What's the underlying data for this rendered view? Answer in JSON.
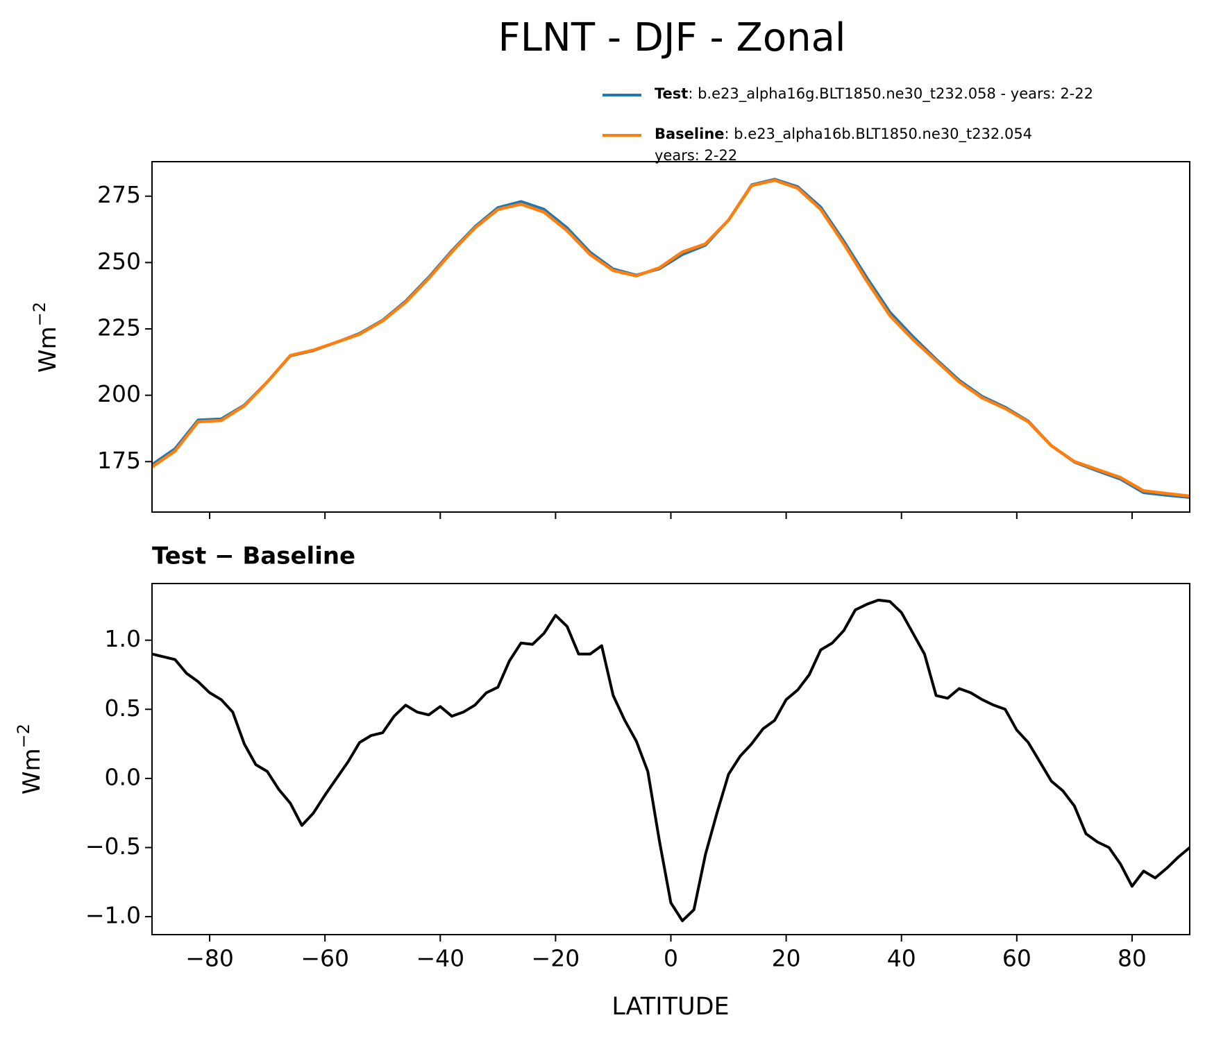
{
  "chart_data": [
    {
      "type": "line",
      "title": "FLNT - DJF - Zonal",
      "ylabel": "Wm",
      "ylabel_exp": "−2",
      "x": [
        -90,
        -86,
        -82,
        -78,
        -74,
        -70,
        -66,
        -62,
        -58,
        -54,
        -50,
        -46,
        -42,
        -38,
        -34,
        -30,
        -26,
        -22,
        -18,
        -14,
        -10,
        -6,
        -2,
        2,
        6,
        10,
        14,
        18,
        22,
        26,
        30,
        34,
        38,
        42,
        46,
        50,
        54,
        58,
        62,
        66,
        70,
        74,
        78,
        82,
        86,
        90
      ],
      "series": [
        {
          "name": "Test",
          "label_lines": [
            ": b.e23_alpha16g.BLT1850.ne30_t232.058 - years: 2-22"
          ],
          "color": "#1f77b4",
          "values": [
            173.9,
            179.9,
            190.7,
            191.1,
            196.3,
            205.1,
            214.8,
            216.8,
            220.0,
            223.3,
            228.3,
            235.5,
            244.5,
            254.5,
            263.5,
            270.7,
            273.0,
            270.1,
            263.1,
            253.9,
            247.6,
            245.3,
            247.6,
            253.0,
            256.5,
            266.0,
            279.3,
            281.4,
            278.6,
            270.9,
            258.1,
            244.3,
            231.3,
            222.1,
            213.6,
            205.7,
            199.6,
            195.5,
            190.3,
            181.0,
            174.8,
            171.5,
            168.4,
            163.3,
            162.3,
            161.5
          ]
        },
        {
          "name": "Baseline",
          "label_lines": [
            ": b.e23_alpha16b.BLT1850.ne30_t232.054",
            "years: 2-22"
          ],
          "color": "#ff7f0e",
          "values": [
            173,
            179,
            190,
            190.5,
            196,
            205,
            215,
            217,
            220,
            223,
            228,
            235,
            244,
            254,
            263,
            270,
            272,
            269,
            262,
            253,
            247,
            245,
            248,
            254,
            257,
            266,
            279,
            281,
            278,
            270,
            257,
            243,
            230,
            221,
            213,
            205,
            199,
            195,
            190,
            181,
            175,
            172,
            169,
            164,
            163,
            162
          ]
        }
      ],
      "xlim": [
        -90,
        90
      ],
      "ylim": [
        156,
        288
      ],
      "xticks": [
        -80,
        -60,
        -40,
        -20,
        0,
        20,
        40,
        60,
        80
      ],
      "yticks": [
        175,
        200,
        225,
        250,
        275
      ]
    },
    {
      "type": "line",
      "title": "Test − Baseline",
      "xlabel": "LATITUDE",
      "ylabel": "Wm",
      "ylabel_exp": "−2",
      "x": [
        -90,
        -88,
        -86,
        -84,
        -82,
        -80,
        -78,
        -76,
        -74,
        -72,
        -70,
        -68,
        -66,
        -64,
        -62,
        -60,
        -58,
        -56,
        -54,
        -52,
        -50,
        -48,
        -46,
        -44,
        -42,
        -40,
        -38,
        -36,
        -34,
        -32,
        -30,
        -28,
        -26,
        -24,
        -22,
        -20,
        -18,
        -16,
        -14,
        -12,
        -10,
        -8,
        -6,
        -4,
        -2,
        0,
        2,
        4,
        6,
        8,
        10,
        12,
        14,
        16,
        18,
        20,
        22,
        24,
        26,
        28,
        30,
        32,
        34,
        36,
        38,
        40,
        42,
        44,
        46,
        48,
        50,
        52,
        54,
        56,
        58,
        60,
        62,
        64,
        66,
        68,
        70,
        72,
        74,
        76,
        78,
        80,
        82,
        84,
        86,
        88,
        90
      ],
      "series": [
        {
          "color": "#000000",
          "values": [
            0.9,
            0.88,
            0.86,
            0.76,
            0.7,
            0.62,
            0.57,
            0.48,
            0.25,
            0.1,
            0.05,
            -0.08,
            -0.18,
            -0.34,
            -0.25,
            -0.12,
            0.0,
            0.12,
            0.26,
            0.31,
            0.33,
            0.45,
            0.53,
            0.48,
            0.46,
            0.52,
            0.45,
            0.48,
            0.53,
            0.62,
            0.66,
            0.85,
            0.98,
            0.97,
            1.05,
            1.18,
            1.1,
            0.9,
            0.9,
            0.96,
            0.6,
            0.42,
            0.27,
            0.05,
            -0.45,
            -0.9,
            -1.03,
            -0.95,
            -0.55,
            -0.25,
            0.03,
            0.16,
            0.25,
            0.36,
            0.42,
            0.57,
            0.64,
            0.75,
            0.93,
            0.98,
            1.07,
            1.22,
            1.26,
            1.29,
            1.28,
            1.2,
            1.05,
            0.9,
            0.6,
            0.58,
            0.65,
            0.62,
            0.57,
            0.53,
            0.5,
            0.35,
            0.26,
            0.12,
            -0.02,
            -0.09,
            -0.2,
            -0.4,
            -0.46,
            -0.5,
            -0.62,
            -0.78,
            -0.67,
            -0.72,
            -0.65,
            -0.57,
            -0.5
          ]
        }
      ],
      "xlim": [
        -90,
        90
      ],
      "ylim": [
        -1.13,
        1.41
      ],
      "xticks": [
        {
          "value": -80,
          "label": "−80"
        },
        {
          "value": -60,
          "label": "−60"
        },
        {
          "value": -40,
          "label": "−40"
        },
        {
          "value": -20,
          "label": "−20"
        },
        0,
        20,
        40,
        60,
        80
      ],
      "yticks": [
        {
          "value": -1.0,
          "label": "−1.0"
        },
        {
          "value": -0.5,
          "label": "−0.5"
        },
        {
          "value": 0.0,
          "label": "0.0"
        },
        0.5,
        {
          "value": 1.0,
          "label": "1.0"
        }
      ]
    }
  ]
}
